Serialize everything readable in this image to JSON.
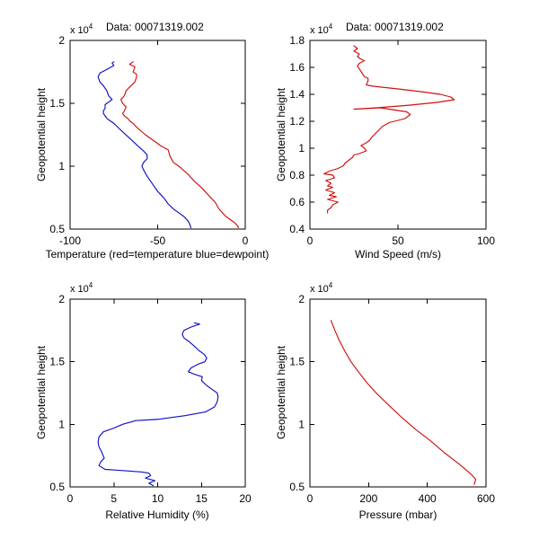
{
  "figure": {
    "background": "#ffffff",
    "axis_color": "#000000",
    "colors": {
      "red": "#d01010",
      "blue": "#1010c8"
    }
  },
  "chart_data": [
    {
      "id": "temp",
      "type": "line",
      "title": "Data: 00071319.002",
      "xlabel": "Temperature (red=temperature blue=dewpoint)",
      "ylabel": "Geopotential height",
      "xlim": [
        -100,
        0
      ],
      "ylim": [
        0.5,
        2.0
      ],
      "xticks": [
        -100,
        -50,
        0
      ],
      "xticklabels": [
        "-100",
        "-50",
        "0"
      ],
      "yticks": [
        0.5,
        1.0,
        1.5,
        2.0
      ],
      "yticklabels": [
        "0.5",
        "1",
        "1.5",
        "2"
      ],
      "exponent": "x 10",
      "exponent_power": "4",
      "series": [
        {
          "name": "temperature",
          "color": "#d01010",
          "points": [
            [
              -64,
              1.83
            ],
            [
              -66,
              1.81
            ],
            [
              -63,
              1.79
            ],
            [
              -64,
              1.75
            ],
            [
              -62,
              1.73
            ],
            [
              -62,
              1.71
            ],
            [
              -63,
              1.67
            ],
            [
              -66,
              1.63
            ],
            [
              -68,
              1.6
            ],
            [
              -69,
              1.56
            ],
            [
              -71,
              1.53
            ],
            [
              -70,
              1.5
            ],
            [
              -68,
              1.47
            ],
            [
              -69,
              1.44
            ],
            [
              -70,
              1.42
            ],
            [
              -69,
              1.4
            ],
            [
              -67,
              1.38
            ],
            [
              -66,
              1.36
            ],
            [
              -64,
              1.34
            ],
            [
              -62,
              1.31
            ],
            [
              -57,
              1.25
            ],
            [
              -52,
              1.2
            ],
            [
              -48,
              1.16
            ],
            [
              -44,
              1.13
            ],
            [
              -43,
              1.08
            ],
            [
              -41,
              1.03
            ],
            [
              -37,
              0.99
            ],
            [
              -33,
              0.94
            ],
            [
              -29,
              0.88
            ],
            [
              -25,
              0.83
            ],
            [
              -21,
              0.77
            ],
            [
              -17,
              0.71
            ],
            [
              -15,
              0.66
            ],
            [
              -11,
              0.6
            ],
            [
              -6,
              0.55
            ],
            [
              -4,
              0.52
            ],
            [
              -4,
              0.51
            ]
          ]
        },
        {
          "name": "dewpoint",
          "color": "#1010c8",
          "points": [
            [
              -75,
              1.83
            ],
            [
              -76,
              1.82
            ],
            [
              -75,
              1.8
            ],
            [
              -79,
              1.77
            ],
            [
              -83,
              1.74
            ],
            [
              -84,
              1.71
            ],
            [
              -83,
              1.67
            ],
            [
              -81,
              1.64
            ],
            [
              -79,
              1.6
            ],
            [
              -78,
              1.56
            ],
            [
              -76,
              1.53
            ],
            [
              -78,
              1.51
            ],
            [
              -80,
              1.49
            ],
            [
              -80,
              1.46
            ],
            [
              -81,
              1.44
            ],
            [
              -81,
              1.42
            ],
            [
              -80,
              1.4
            ],
            [
              -79,
              1.38
            ],
            [
              -77,
              1.36
            ],
            [
              -75,
              1.34
            ],
            [
              -72,
              1.3
            ],
            [
              -69,
              1.26
            ],
            [
              -65,
              1.21
            ],
            [
              -62,
              1.17
            ],
            [
              -58,
              1.12
            ],
            [
              -56,
              1.09
            ],
            [
              -56,
              1.06
            ],
            [
              -58,
              1.03
            ],
            [
              -59,
              1.0
            ],
            [
              -58,
              0.97
            ],
            [
              -56,
              0.92
            ],
            [
              -54,
              0.88
            ],
            [
              -52,
              0.84
            ],
            [
              -50,
              0.8
            ],
            [
              -48,
              0.77
            ],
            [
              -46,
              0.74
            ],
            [
              -44,
              0.7
            ],
            [
              -41,
              0.66
            ],
            [
              -38,
              0.63
            ],
            [
              -35,
              0.6
            ],
            [
              -33,
              0.57
            ],
            [
              -32,
              0.55
            ],
            [
              -31,
              0.51
            ]
          ]
        }
      ]
    },
    {
      "id": "wind",
      "type": "line",
      "title": "Data: 00071319.002",
      "xlabel": "Wind Speed (m/s)",
      "ylabel": "Geopotential height",
      "xlim": [
        0,
        100
      ],
      "ylim": [
        0.4,
        1.8
      ],
      "xticks": [
        0,
        50,
        100
      ],
      "xticklabels": [
        "0",
        "50",
        "100"
      ],
      "yticks": [
        0.4,
        0.6,
        0.8,
        1.0,
        1.2,
        1.4,
        1.6,
        1.8
      ],
      "yticklabels": [
        "0.4",
        "0.6",
        "0.8",
        "1",
        "1.2",
        "1.4",
        "1.6",
        "1.8"
      ],
      "exponent": "x 10",
      "exponent_power": "4",
      "series": [
        {
          "name": "wind speed",
          "color": "#d01010",
          "points": [
            [
              25,
              1.76
            ],
            [
              27,
              1.74
            ],
            [
              25,
              1.72
            ],
            [
              28,
              1.7
            ],
            [
              27,
              1.68
            ],
            [
              29,
              1.66
            ],
            [
              31,
              1.65
            ],
            [
              28,
              1.63
            ],
            [
              27,
              1.61
            ],
            [
              28,
              1.59
            ],
            [
              31,
              1.53
            ],
            [
              33,
              1.52
            ],
            [
              33,
              1.5
            ],
            [
              32,
              1.47
            ],
            [
              36,
              1.46
            ],
            [
              50,
              1.44
            ],
            [
              63,
              1.42
            ],
            [
              74,
              1.4
            ],
            [
              80,
              1.38
            ],
            [
              82,
              1.36
            ],
            [
              72,
              1.34
            ],
            [
              57,
              1.32
            ],
            [
              38,
              1.3
            ],
            [
              25,
              1.29
            ],
            [
              40,
              1.3
            ],
            [
              50,
              1.28
            ],
            [
              55,
              1.27
            ],
            [
              57,
              1.25
            ],
            [
              54,
              1.22
            ],
            [
              45,
              1.19
            ],
            [
              41,
              1.16
            ],
            [
              38,
              1.12
            ],
            [
              35,
              1.08
            ],
            [
              34,
              1.06
            ],
            [
              32,
              1.04
            ],
            [
              29,
              1.02
            ],
            [
              31,
              1.0
            ],
            [
              32,
              0.98
            ],
            [
              28,
              0.96
            ],
            [
              25,
              0.95
            ],
            [
              24,
              0.93
            ],
            [
              22,
              0.91
            ],
            [
              20,
              0.89
            ],
            [
              19,
              0.87
            ],
            [
              16,
              0.85
            ],
            [
              11,
              0.83
            ],
            [
              8,
              0.81
            ],
            [
              13,
              0.8
            ],
            [
              14,
              0.78
            ],
            [
              9,
              0.76
            ],
            [
              12,
              0.74
            ],
            [
              10,
              0.72
            ],
            [
              13,
              0.71
            ],
            [
              9,
              0.69
            ],
            [
              14,
              0.67
            ],
            [
              11,
              0.65
            ],
            [
              15,
              0.64
            ],
            [
              10,
              0.62
            ],
            [
              16,
              0.6
            ],
            [
              13,
              0.58
            ],
            [
              12,
              0.56
            ],
            [
              10,
              0.54
            ],
            [
              10,
              0.52
            ]
          ]
        }
      ]
    },
    {
      "id": "rh",
      "type": "line",
      "title": "",
      "xlabel": "Relative Humidity (%)",
      "ylabel": "Geopotential height",
      "xlim": [
        0,
        20
      ],
      "ylim": [
        0.5,
        2.0
      ],
      "xticks": [
        0,
        5,
        10,
        15,
        20
      ],
      "xticklabels": [
        "0",
        "5",
        "10",
        "15",
        "20"
      ],
      "yticks": [
        0.5,
        1.0,
        1.5,
        2.0
      ],
      "yticklabels": [
        "0.5",
        "1",
        "1.5",
        "2"
      ],
      "exponent": "x 10",
      "exponent_power": "4",
      "series": [
        {
          "name": "relative humidity",
          "color": "#1010c8",
          "points": [
            [
              14.2,
              1.81
            ],
            [
              14.8,
              1.8
            ],
            [
              13.9,
              1.78
            ],
            [
              13.0,
              1.75
            ],
            [
              12.8,
              1.72
            ],
            [
              13.0,
              1.69
            ],
            [
              13.6,
              1.66
            ],
            [
              14.1,
              1.63
            ],
            [
              14.7,
              1.59
            ],
            [
              15.3,
              1.56
            ],
            [
              15.6,
              1.53
            ],
            [
              15.4,
              1.5
            ],
            [
              14.6,
              1.48
            ],
            [
              13.8,
              1.45
            ],
            [
              13.5,
              1.42
            ],
            [
              14.2,
              1.4
            ],
            [
              15.1,
              1.38
            ],
            [
              15.0,
              1.35
            ],
            [
              15.6,
              1.31
            ],
            [
              16.2,
              1.28
            ],
            [
              16.8,
              1.25
            ],
            [
              16.9,
              1.22
            ],
            [
              16.8,
              1.18
            ],
            [
              16.5,
              1.14
            ],
            [
              15.5,
              1.1
            ],
            [
              13.2,
              1.07
            ],
            [
              10.0,
              1.04
            ],
            [
              7.5,
              1.03
            ],
            [
              6.0,
              1.0
            ],
            [
              5.0,
              0.97
            ],
            [
              3.8,
              0.94
            ],
            [
              3.3,
              0.9
            ],
            [
              3.2,
              0.86
            ],
            [
              3.3,
              0.82
            ],
            [
              3.6,
              0.78
            ],
            [
              3.9,
              0.73
            ],
            [
              3.5,
              0.7
            ],
            [
              3.3,
              0.67
            ],
            [
              4.0,
              0.64
            ],
            [
              6.2,
              0.63
            ],
            [
              8.1,
              0.62
            ],
            [
              9.0,
              0.61
            ],
            [
              9.2,
              0.59
            ],
            [
              8.6,
              0.57
            ],
            [
              9.7,
              0.55
            ],
            [
              9.0,
              0.53
            ],
            [
              9.5,
              0.51
            ]
          ]
        }
      ]
    },
    {
      "id": "pressure",
      "type": "line",
      "title": "",
      "xlabel": "Pressure (mbar)",
      "ylabel": "Geopotential height",
      "xlim": [
        0,
        600
      ],
      "ylim": [
        0.5,
        2.0
      ],
      "xticks": [
        0,
        200,
        400,
        600
      ],
      "xticklabels": [
        "0",
        "200",
        "400",
        "600"
      ],
      "yticks": [
        0.5,
        1.0,
        1.5,
        2.0
      ],
      "yticklabels": [
        "0.5",
        "1",
        "1.5",
        "2"
      ],
      "exponent": "x 10",
      "exponent_power": "4",
      "series": [
        {
          "name": "pressure",
          "color": "#d01010",
          "points": [
            [
              72,
              1.83
            ],
            [
              85,
              1.75
            ],
            [
              100,
              1.67
            ],
            [
              120,
              1.58
            ],
            [
              140,
              1.5
            ],
            [
              165,
              1.42
            ],
            [
              195,
              1.33
            ],
            [
              230,
              1.24
            ],
            [
              270,
              1.15
            ],
            [
              315,
              1.05
            ],
            [
              360,
              0.96
            ],
            [
              410,
              0.87
            ],
            [
              460,
              0.77
            ],
            [
              510,
              0.68
            ],
            [
              550,
              0.6
            ],
            [
              565,
              0.56
            ],
            [
              560,
              0.52
            ]
          ]
        }
      ]
    }
  ]
}
